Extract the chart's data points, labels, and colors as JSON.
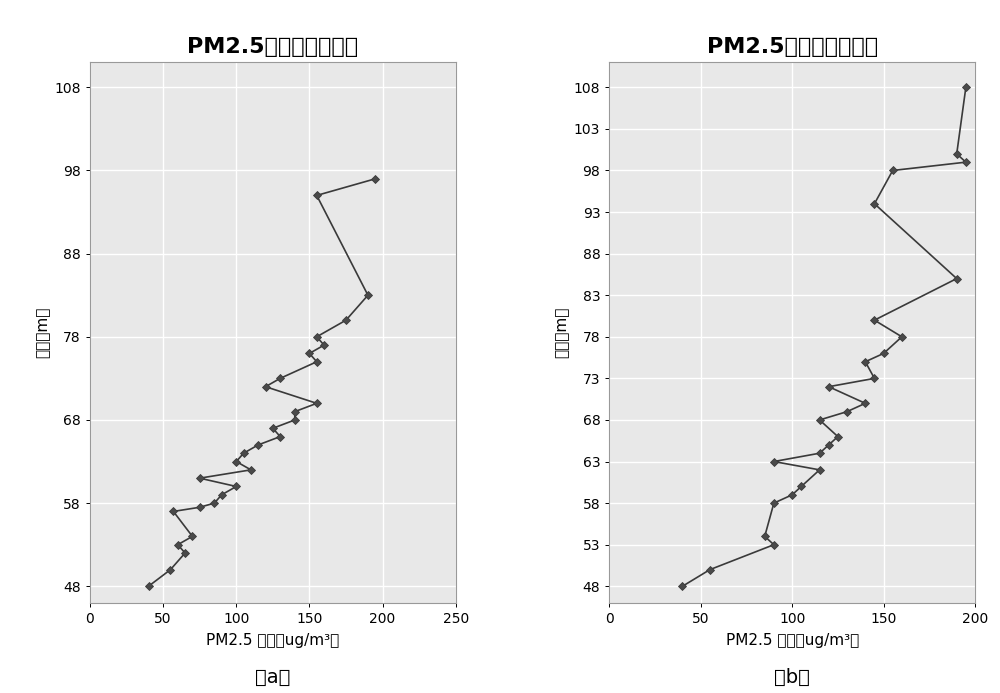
{
  "title": "PM2.5随高度变化曲线",
  "xlabel": "PM2.5 浓度（ug/m³）",
  "ylabel": "高度（m）",
  "label_a": "（a）",
  "label_b": "（b）",
  "chart_a": {
    "pm25": [
      40,
      55,
      65,
      60,
      70,
      57,
      75,
      85,
      90,
      100,
      75,
      110,
      100,
      105,
      115,
      130,
      125,
      140,
      140,
      155,
      120,
      130,
      155,
      150,
      160,
      155,
      175,
      190,
      155,
      195
    ],
    "height": [
      48,
      50,
      52,
      53,
      54,
      57,
      57.5,
      58,
      59,
      60,
      61,
      62,
      63,
      64,
      65,
      66,
      67,
      68,
      69,
      70,
      72,
      73,
      75,
      76,
      77,
      78,
      80,
      83,
      95,
      97
    ],
    "yticks": [
      48,
      58,
      68,
      78,
      88,
      98,
      108
    ],
    "xticks": [
      0,
      50,
      100,
      150,
      200,
      250
    ],
    "xlim": [
      0,
      250
    ],
    "ylim": [
      46,
      111
    ]
  },
  "chart_b": {
    "pm25": [
      40,
      55,
      90,
      85,
      90,
      100,
      105,
      115,
      90,
      115,
      120,
      125,
      115,
      130,
      140,
      120,
      145,
      140,
      150,
      160,
      145,
      190,
      145,
      155,
      195,
      190,
      195
    ],
    "height": [
      48,
      50,
      53,
      54,
      58,
      59,
      60,
      62,
      63,
      64,
      65,
      66,
      68,
      69,
      70,
      72,
      73,
      75,
      76,
      78,
      80,
      85,
      94,
      98,
      99,
      100,
      108
    ],
    "yticks": [
      48,
      53,
      58,
      63,
      68,
      73,
      78,
      83,
      88,
      93,
      98,
      103,
      108
    ],
    "xticks": [
      0,
      50,
      100,
      150,
      200
    ],
    "xlim": [
      0,
      200
    ],
    "ylim": [
      46,
      111
    ]
  },
  "line_color": "#3a3a3a",
  "marker": "D",
  "marker_size": 4,
  "marker_facecolor": "#4a4a4a",
  "marker_edgecolor": "#3a3a3a",
  "bg_color": "#e8e8e8",
  "grid_color": "#ffffff",
  "title_fontsize": 16,
  "axis_label_fontsize": 11,
  "tick_fontsize": 10,
  "sublabel_fontsize": 14
}
